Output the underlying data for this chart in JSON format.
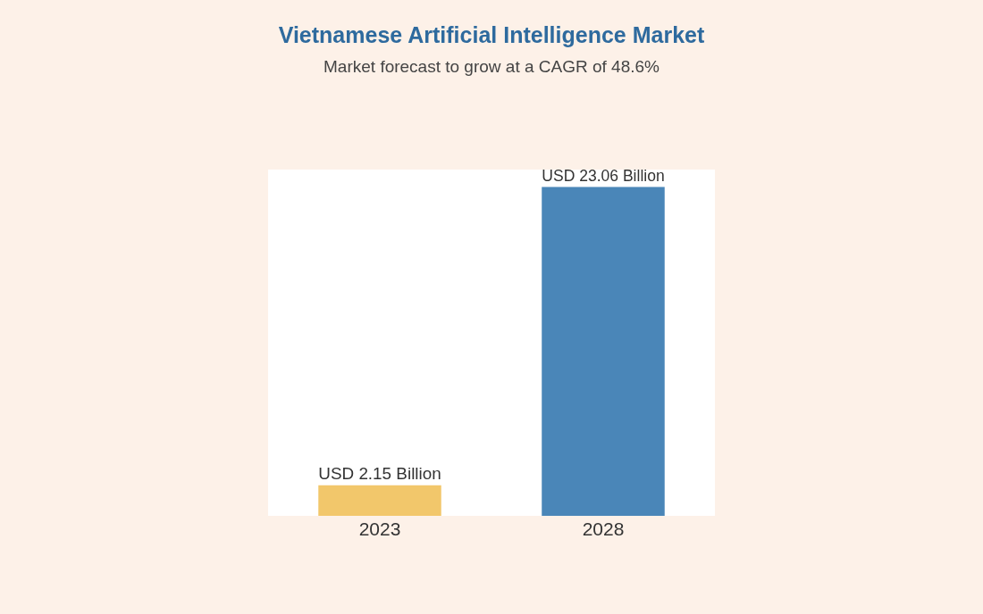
{
  "chart_data": {
    "type": "bar",
    "title": "Vietnamese Artificial Intelligence Market",
    "subtitle": "Market forecast to grow at a CAGR of 48.6%",
    "categories": [
      "2023",
      "2028"
    ],
    "values": [
      2.15,
      23.06
    ],
    "colors": [
      "#f2c76b",
      "#4a86b8"
    ],
    "value_labels": [
      "USD 2.15 Billion",
      "USD 23.06 Billion"
    ]
  }
}
